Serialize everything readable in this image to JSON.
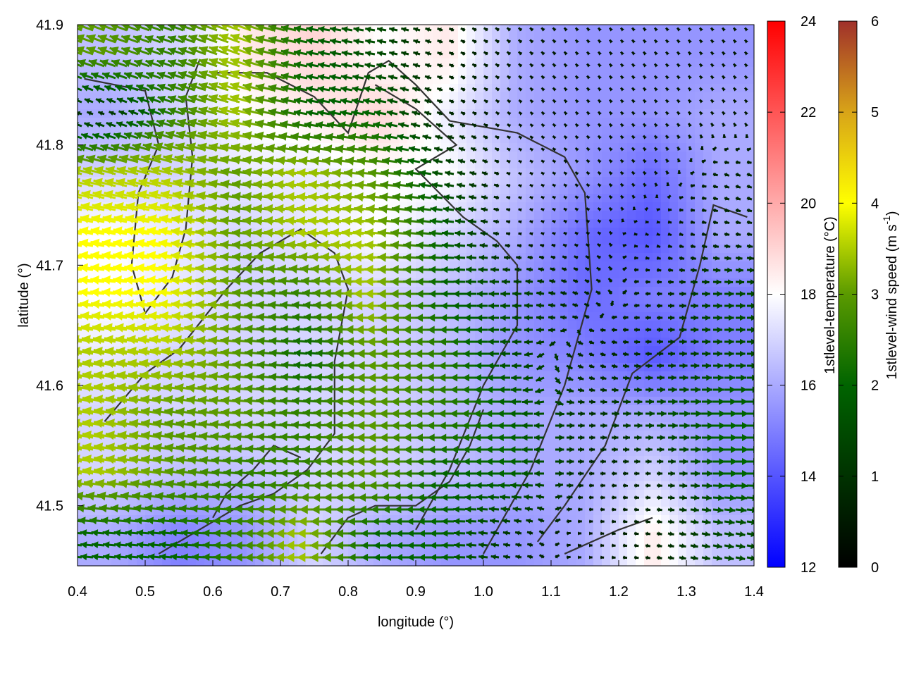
{
  "chart_data": {
    "type": "heatmap",
    "overlay": "vector",
    "xlabel": "longitude (°)",
    "ylabel": "latitude (°)",
    "xlim": [
      0.4,
      1.4
    ],
    "ylim": [
      41.45,
      41.9
    ],
    "xticks": [
      "0.4",
      "0.5",
      "0.6",
      "0.7",
      "0.8",
      "0.9",
      "1.0",
      "1.1",
      "1.2",
      "1.3",
      "1.4"
    ],
    "yticks": [
      "41.5",
      "41.6",
      "41.7",
      "41.8",
      "41.9"
    ],
    "grid_lon": [
      0.45,
      0.55,
      0.65,
      0.75,
      0.85,
      0.95,
      1.05,
      1.15,
      1.25,
      1.35
    ],
    "grid_lat": [
      41.875,
      41.825,
      41.775,
      41.725,
      41.675,
      41.625,
      41.575,
      41.525,
      41.475
    ],
    "temperature": [
      [
        16.5,
        17,
        18.5,
        19,
        18,
        18.5,
        16,
        15.5,
        15.5,
        15.5
      ],
      [
        16,
        17,
        18,
        18.5,
        19,
        17.5,
        16,
        15.5,
        15.5,
        16
      ],
      [
        17,
        17,
        17.5,
        17.5,
        18,
        18,
        16.5,
        15.5,
        14.5,
        16
      ],
      [
        18,
        17.5,
        17,
        17.5,
        18,
        17,
        16,
        14.5,
        14,
        16
      ],
      [
        18,
        17.5,
        17,
        17,
        17,
        16.5,
        15.5,
        14.5,
        15,
        15
      ],
      [
        17.5,
        17,
        17,
        17,
        17,
        16.5,
        15.5,
        15,
        14,
        15
      ],
      [
        17,
        17,
        17,
        17,
        17,
        16.5,
        16,
        16,
        16,
        15.5
      ],
      [
        17,
        16.5,
        16.5,
        17,
        17,
        16.5,
        16,
        16,
        17,
        15.5
      ],
      [
        16,
        15,
        15.5,
        17,
        16,
        15.5,
        15.5,
        16,
        18.5,
        16.5
      ]
    ],
    "wind_speed": [
      [
        3,
        2.5,
        3.5,
        2,
        1.5,
        0.8,
        0.6,
        0.5,
        0.5,
        0.5
      ],
      [
        1,
        2.5,
        3.5,
        2,
        2,
        0.8,
        0.5,
        0.5,
        0.5,
        0.5
      ],
      [
        3.5,
        3.5,
        3,
        3.5,
        3,
        1.5,
        0.5,
        0.5,
        0.5,
        0.8
      ],
      [
        4,
        4,
        3,
        3.5,
        3.5,
        2,
        0.5,
        0.5,
        0.5,
        0.8
      ],
      [
        4,
        4,
        3,
        2.5,
        3.5,
        2,
        1.5,
        0.8,
        0.8,
        1.5
      ],
      [
        3.5,
        3.5,
        3,
        2,
        3,
        2.5,
        1.5,
        0.8,
        1,
        1.5
      ],
      [
        3.5,
        3,
        3,
        2.5,
        3,
        2.5,
        2,
        1,
        1.5,
        2
      ],
      [
        3.5,
        3,
        2.5,
        2.5,
        3,
        2,
        2,
        0.8,
        0.8,
        2
      ],
      [
        2,
        2,
        2.5,
        3.5,
        2,
        2,
        1,
        0.5,
        0.8,
        1.5
      ]
    ],
    "wind_direction_deg": [
      [
        200,
        200,
        200,
        190,
        190,
        200,
        220,
        230,
        230,
        230
      ],
      [
        200,
        200,
        195,
        190,
        190,
        200,
        220,
        230,
        230,
        230
      ],
      [
        195,
        195,
        190,
        185,
        185,
        190,
        200,
        220,
        230,
        20
      ],
      [
        190,
        190,
        185,
        185,
        185,
        185,
        190,
        210,
        20,
        10
      ],
      [
        185,
        185,
        185,
        185,
        180,
        180,
        180,
        200,
        0,
        0
      ],
      [
        190,
        190,
        185,
        185,
        180,
        180,
        180,
        20,
        0,
        0
      ],
      [
        190,
        190,
        185,
        185,
        180,
        180,
        180,
        0,
        0,
        0
      ],
      [
        190,
        190,
        185,
        180,
        180,
        180,
        180,
        0,
        0,
        0
      ],
      [
        185,
        185,
        180,
        180,
        180,
        180,
        190,
        0,
        10,
        10
      ]
    ],
    "colorbars": [
      {
        "label": "1stlevel-temperature (°C)",
        "range": [
          12,
          24
        ],
        "ticks": [
          "12",
          "14",
          "16",
          "18",
          "20",
          "22",
          "24"
        ],
        "colors": [
          "#0000ff",
          "#ffffff",
          "#ff0000"
        ]
      },
      {
        "label": "1stlevel-wind speed (m s",
        "label_sup": "-1",
        "label_end": ")",
        "range": [
          0,
          6
        ],
        "ticks": [
          "0",
          "1",
          "2",
          "3",
          "4",
          "5",
          "6"
        ],
        "colors": [
          "#000000",
          "#006400",
          "#ffff00",
          "#a0302a"
        ]
      }
    ]
  }
}
